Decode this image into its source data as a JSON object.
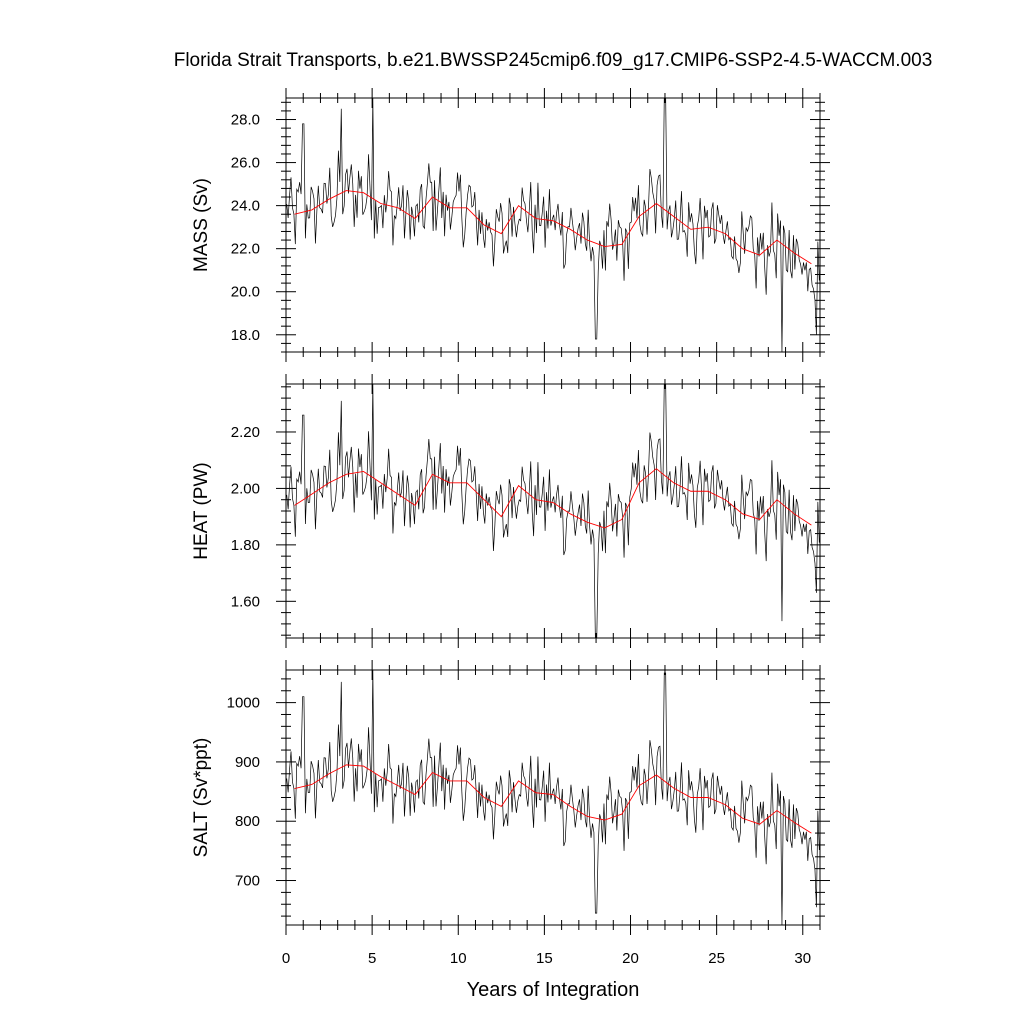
{
  "chart_data": {
    "type": "line",
    "title": "Florida Strait Transports, b.e21.BWSSP245cmip6.f09_g17.CMIP6-SSP2-4.5-WACCM.003",
    "xlabel": "Years of Integration",
    "xlim": [
      0,
      31
    ],
    "x_ticks": [
      "0",
      "5",
      "10",
      "15",
      "20",
      "25",
      "30"
    ],
    "legend": "none",
    "grid": false,
    "colors": {
      "monthly": "#000000",
      "annual": "#ff0000"
    },
    "annual_x": [
      0.5,
      1.5,
      2.5,
      3.5,
      4.5,
      5.5,
      6.5,
      7.5,
      8.5,
      9.5,
      10.5,
      11.5,
      12.5,
      13.5,
      14.5,
      15.5,
      16.5,
      17.5,
      18.5,
      19.5,
      20.5,
      21.5,
      22.5,
      23.5,
      24.5,
      25.5,
      26.5,
      27.5,
      28.5,
      29.5,
      30.5
    ],
    "panels": [
      {
        "ylabel": "MASS (Sv)",
        "ylim": [
          17.2,
          29.0
        ],
        "y_ticks": [
          "18.0",
          "20.0",
          "22.0",
          "24.0",
          "26.0",
          "28.0"
        ],
        "annual": [
          23.6,
          23.8,
          24.3,
          24.7,
          24.6,
          24.1,
          23.9,
          23.4,
          24.4,
          23.9,
          23.9,
          23.1,
          22.7,
          24.0,
          23.4,
          23.3,
          22.9,
          22.4,
          22.1,
          22.2,
          23.5,
          24.1,
          23.5,
          22.9,
          23.0,
          22.7,
          22.0,
          21.7,
          22.4,
          21.8,
          21.3
        ],
        "monthly_base": 23.2,
        "monthly_amp": 1.5,
        "spikes": [
          [
            5.05,
            29.0
          ],
          [
            22.0,
            29.0
          ],
          [
            18.0,
            17.8
          ],
          [
            28.8,
            17.1
          ],
          [
            30.8,
            18.0
          ],
          [
            3.2,
            28.5
          ],
          [
            1.0,
            27.8
          ]
        ]
      },
      {
        "ylabel": "HEAT (PW)",
        "ylim": [
          1.47,
          2.37
        ],
        "y_ticks": [
          "1.60",
          "1.80",
          "2.00",
          "2.20"
        ],
        "annual": [
          1.94,
          1.98,
          2.02,
          2.05,
          2.06,
          2.02,
          1.98,
          1.94,
          2.05,
          2.02,
          2.02,
          1.96,
          1.9,
          2.01,
          1.96,
          1.95,
          1.91,
          1.88,
          1.86,
          1.89,
          2.02,
          2.07,
          2.02,
          1.99,
          1.99,
          1.96,
          1.91,
          1.89,
          1.96,
          1.91,
          1.87
        ],
        "monthly_base": 1.95,
        "monthly_amp": 0.12,
        "spikes": [
          [
            5.05,
            2.37
          ],
          [
            22.0,
            2.37
          ],
          [
            18.0,
            1.47
          ],
          [
            28.8,
            1.53
          ],
          [
            30.8,
            1.63
          ],
          [
            3.2,
            2.31
          ],
          [
            1.0,
            2.26
          ]
        ]
      },
      {
        "ylabel": "SALT (Sv*ppt)",
        "ylim": [
          625,
          1055
        ],
        "y_ticks": [
          "700",
          "800",
          "900",
          "1000"
        ],
        "annual": [
          855,
          862,
          880,
          895,
          893,
          875,
          860,
          845,
          882,
          868,
          868,
          840,
          825,
          868,
          848,
          845,
          825,
          808,
          802,
          812,
          860,
          878,
          856,
          840,
          840,
          828,
          805,
          795,
          818,
          798,
          780
        ],
        "monthly_base": 845,
        "monthly_amp": 55,
        "spikes": [
          [
            5.05,
            1055
          ],
          [
            22.0,
            1050
          ],
          [
            18.0,
            645
          ],
          [
            28.8,
            625
          ],
          [
            30.8,
            655
          ],
          [
            3.2,
            1035
          ],
          [
            1.0,
            1010
          ]
        ]
      }
    ]
  }
}
